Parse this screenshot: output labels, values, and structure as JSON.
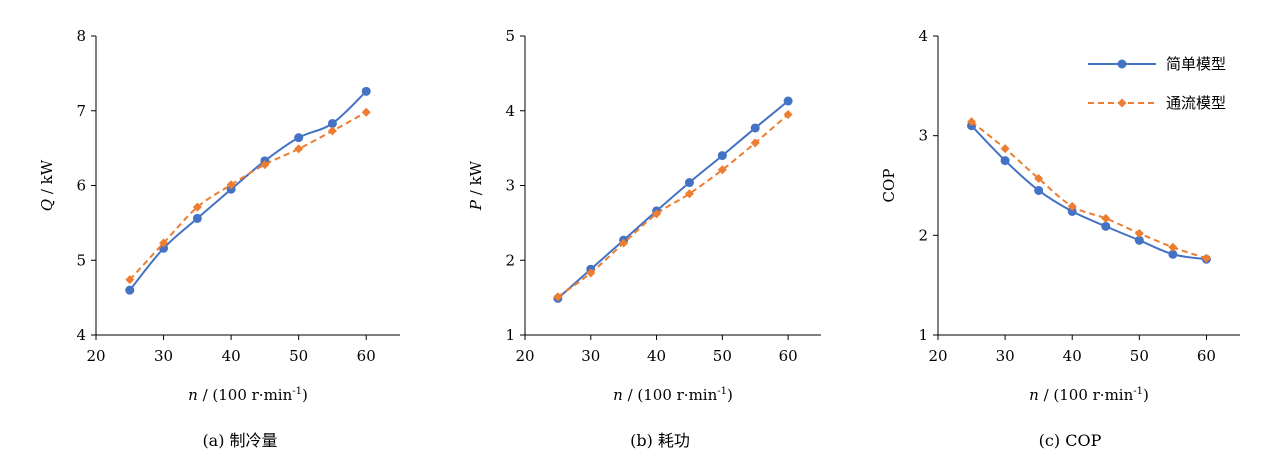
{
  "colors": {
    "simple": "#4472C4",
    "flow": "#ED7D31"
  },
  "legend": {
    "simple": "简单模型",
    "flow": "通流模型",
    "placement": "top-right"
  },
  "chart_data": [
    {
      "type": "line",
      "caption": "(a)  制冷量",
      "ylabel_var": "Q",
      "ylabel_unit": " / kW",
      "xlabel_var": "n",
      "xlabel_unit": " / (100 r·min",
      "xlabel_sup": "-1",
      "xlabel_close": ")",
      "xlim": [
        20,
        65
      ],
      "xticks": [
        20,
        30,
        40,
        50,
        60
      ],
      "ylim": [
        4,
        8
      ],
      "yticks": [
        4,
        5,
        6,
        7,
        8
      ],
      "x": [
        25,
        30,
        35,
        40,
        45,
        50,
        55,
        60
      ],
      "series": [
        {
          "name": "简单模型",
          "key": "simple",
          "values": [
            4.6,
            5.16,
            5.56,
            5.95,
            6.33,
            6.64,
            6.83,
            7.26
          ]
        },
        {
          "name": "通流模型",
          "key": "flow",
          "values": [
            4.74,
            5.23,
            5.71,
            6.01,
            6.28,
            6.49,
            6.73,
            6.98
          ]
        }
      ]
    },
    {
      "type": "line",
      "caption": "(b)  耗功",
      "ylabel_var": "P",
      "ylabel_unit": " / kW",
      "xlabel_var": "n",
      "xlabel_unit": " / (100 r·min",
      "xlabel_sup": "-1",
      "xlabel_close": ")",
      "xlim": [
        20,
        65
      ],
      "xticks": [
        20,
        30,
        40,
        50,
        60
      ],
      "ylim": [
        1,
        5
      ],
      "yticks": [
        1,
        2,
        3,
        4,
        5
      ],
      "x": [
        25,
        30,
        35,
        40,
        45,
        50,
        55,
        60
      ],
      "series": [
        {
          "name": "简单模型",
          "key": "simple",
          "values": [
            1.49,
            1.88,
            2.27,
            2.66,
            3.04,
            3.4,
            3.77,
            4.13
          ]
        },
        {
          "name": "通流模型",
          "key": "flow",
          "values": [
            1.51,
            1.83,
            2.23,
            2.62,
            2.89,
            3.21,
            3.57,
            3.95
          ]
        }
      ]
    },
    {
      "type": "line",
      "caption": "(c)  COP",
      "ylabel_var": "",
      "ylabel_unit": "COP",
      "xlabel_var": "n",
      "xlabel_unit": " / (100 r·min",
      "xlabel_sup": "-1",
      "xlabel_close": ")",
      "xlim": [
        20,
        65
      ],
      "xticks": [
        20,
        30,
        40,
        50,
        60
      ],
      "ylim": [
        1,
        4
      ],
      "yticks": [
        1,
        2,
        3,
        4
      ],
      "x": [
        25,
        30,
        35,
        40,
        45,
        50,
        55,
        60
      ],
      "series": [
        {
          "name": "简单模型",
          "key": "simple",
          "values": [
            3.1,
            2.75,
            2.45,
            2.24,
            2.09,
            1.95,
            1.81,
            1.76
          ]
        },
        {
          "name": "通流模型",
          "key": "flow",
          "values": [
            3.14,
            2.87,
            2.57,
            2.29,
            2.17,
            2.02,
            1.88,
            1.77
          ]
        }
      ]
    }
  ]
}
